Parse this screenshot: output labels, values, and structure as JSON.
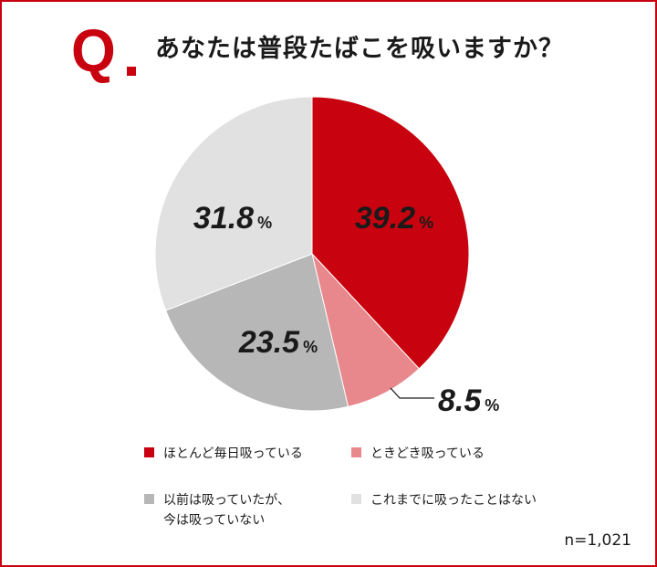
{
  "header": {
    "q_label": "Q",
    "question": "あなたは普段たばこを吸いますか？"
  },
  "chart_data": {
    "type": "pie",
    "title": "",
    "unit": "%",
    "slices": [
      {
        "label": "ほとんど毎日吸っている",
        "value": 39.2,
        "display": "39.2",
        "color": "#c8030f",
        "text_color": "#1a1a1a"
      },
      {
        "label": "ときどき吸っている",
        "value": 8.5,
        "display": "8.5",
        "color": "#e8878c",
        "text_color": "#1a1a1a"
      },
      {
        "label": "以前は吸っていたが、\n今は吸っていない",
        "value": 23.5,
        "display": "23.5",
        "color": "#b7b7b7",
        "text_color": "#1a1a1a"
      },
      {
        "label": "これまでに吸ったことはない",
        "value": 31.8,
        "display": "31.8",
        "color": "#e1e1e1",
        "text_color": "#1a1a1a"
      }
    ],
    "start": "12 o'clock",
    "direction": "clockwise",
    "legend_position": "bottom"
  },
  "footer": {
    "sample_size": "n=1,021"
  }
}
